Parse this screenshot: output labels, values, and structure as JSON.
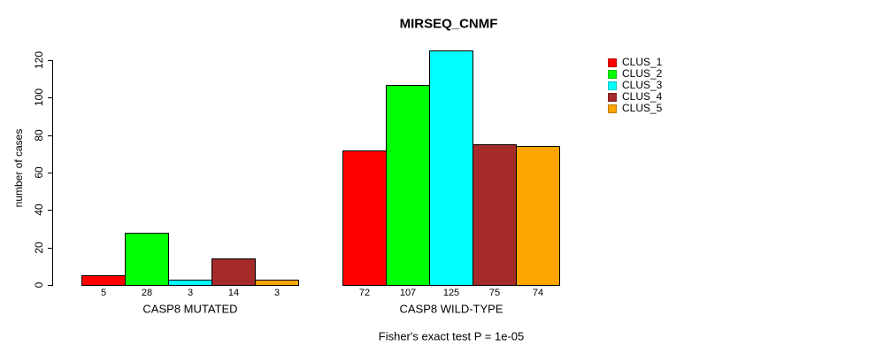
{
  "title": "MIRSEQ_CNMF",
  "y_axis_label": "number of cases",
  "footer": "Fisher's exact test P = 1e-05",
  "chart_data": {
    "type": "bar",
    "title": "MIRSEQ_CNMF",
    "xlabel": "",
    "ylabel": "number of cases",
    "ylim": [
      0,
      130
    ],
    "y_ticks": [
      0,
      20,
      40,
      60,
      80,
      100,
      120
    ],
    "grid": false,
    "legend_position": "right",
    "categories": [
      "CASP8 MUTATED",
      "CASP8 WILD-TYPE"
    ],
    "series": [
      {
        "name": "CLUS_1",
        "color": "#FF0000",
        "values": [
          5,
          72
        ]
      },
      {
        "name": "CLUS_2",
        "color": "#00FF00",
        "values": [
          28,
          107
        ]
      },
      {
        "name": "CLUS_3",
        "color": "#00FFFF",
        "values": [
          3,
          125
        ]
      },
      {
        "name": "CLUS_4",
        "color": "#A52A2A",
        "values": [
          14,
          75
        ]
      },
      {
        "name": "CLUS_5",
        "color": "#FFA500",
        "values": [
          3,
          74
        ]
      }
    ],
    "bar_value_labels": [
      [
        "5",
        "28",
        "3",
        "14",
        "3"
      ],
      [
        "72",
        "107",
        "125",
        "75",
        "74"
      ]
    ],
    "annotation": "Fisher's exact test P = 1e-05"
  }
}
